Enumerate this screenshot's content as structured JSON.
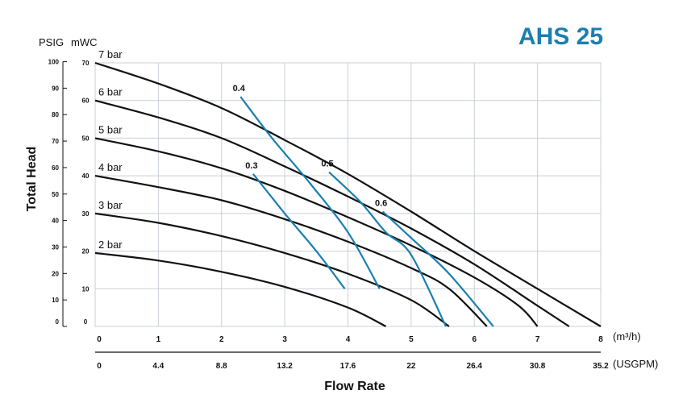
{
  "title": "AHS 25",
  "colors": {
    "pressure_curve": "#111111",
    "air_curve": "#1a7fb0",
    "grid": "#c9cfd8",
    "title": "#1a7fb0"
  },
  "chart_data": {
    "type": "line",
    "title": "AHS 25",
    "xlabel": "Flow Rate",
    "ylabel": "Total Head",
    "x_unit_primary": "(m³/h)",
    "x_unit_secondary": "(USGPM)",
    "y_unit_psig": "PSIG",
    "y_unit_mwc": "mWC",
    "xlim": [
      0,
      8
    ],
    "ylim": [
      0,
      70
    ],
    "x_ticks": [
      "0",
      "1",
      "2",
      "3",
      "4",
      "5",
      "6",
      "7",
      "8"
    ],
    "x_ticks_usgpm": [
      "0",
      "4.4",
      "8.8",
      "13.2",
      "17.6",
      "22",
      "26.4",
      "30.8",
      "35.2"
    ],
    "y_ticks_mwc": [
      "0",
      "10",
      "20",
      "30",
      "40",
      "50",
      "60",
      "70"
    ],
    "y_ticks_psig": [
      "0",
      "10",
      "20",
      "30",
      "40",
      "50",
      "60",
      "70",
      "80",
      "90",
      "100"
    ],
    "grid": true,
    "series": [
      {
        "name": "7 bar",
        "x": [
          0,
          1,
          2,
          3,
          4,
          5,
          6,
          7,
          8
        ],
        "y": [
          70,
          64.5,
          58,
          49.5,
          40.5,
          30.5,
          20,
          10,
          0
        ]
      },
      {
        "name": "6 bar",
        "x": [
          0,
          1,
          2,
          3,
          4,
          5,
          6,
          7,
          7.5
        ],
        "y": [
          60,
          55.5,
          50,
          42.5,
          34.5,
          26,
          16.5,
          5.5,
          0
        ]
      },
      {
        "name": "5 bar",
        "x": [
          0,
          1,
          2,
          3,
          4,
          5,
          6,
          6.7,
          7.0
        ],
        "y": [
          50,
          46.5,
          42,
          36,
          29,
          21.5,
          13,
          5.5,
          0
        ]
      },
      {
        "name": "4 bar",
        "x": [
          0,
          1,
          2,
          3,
          4,
          5,
          5.6,
          6.2
        ],
        "y": [
          40,
          37,
          33.5,
          28.5,
          22.5,
          15.5,
          10,
          0
        ]
      },
      {
        "name": "3 bar",
        "x": [
          0,
          1,
          2,
          3,
          4,
          5,
          5.6
        ],
        "y": [
          30,
          27.5,
          24,
          19.5,
          14,
          7,
          0
        ]
      },
      {
        "name": "2 bar",
        "x": [
          0,
          1,
          2,
          3,
          4,
          4.6
        ],
        "y": [
          19.5,
          17.5,
          14.5,
          10.5,
          5,
          0
        ]
      }
    ],
    "air_consumption_lines": [
      {
        "name": "0.3",
        "x": [
          2.5,
          3.0,
          3.5,
          3.95
        ],
        "y": [
          40.5,
          30,
          20,
          10
        ]
      },
      {
        "name": "0.4",
        "x": [
          2.3,
          2.8,
          3.4,
          4.0,
          4.5
        ],
        "y": [
          61,
          50,
          38,
          25,
          10
        ]
      },
      {
        "name": "0.5",
        "x": [
          3.7,
          4.2,
          4.6,
          5.0,
          5.55
        ],
        "y": [
          41,
          33,
          25,
          19,
          0
        ]
      },
      {
        "name": "0.6",
        "x": [
          4.55,
          5.0,
          5.6,
          6.3
        ],
        "y": [
          30.5,
          23.5,
          14,
          0
        ]
      }
    ]
  }
}
